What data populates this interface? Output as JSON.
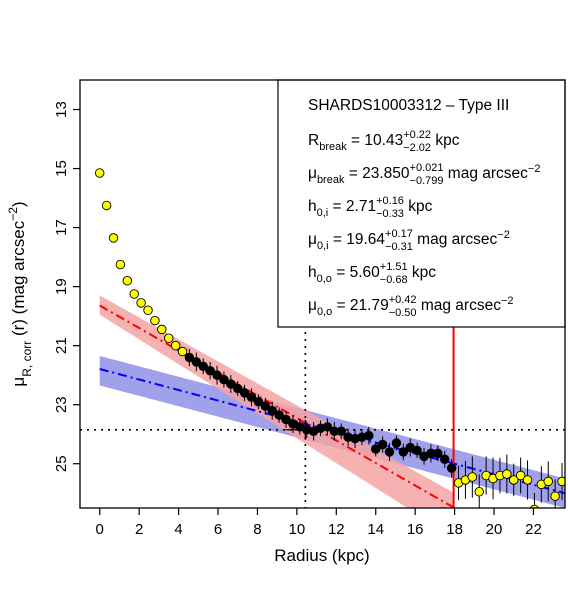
{
  "chart_data": {
    "type": "scatter",
    "title": "",
    "xlabel": "Radius (kpc)",
    "ylabel": {
      "base": "μ",
      "sub": "R, corr",
      "rest": "(r) (mag arcsec",
      "sup": "−2",
      "close": ")"
    },
    "xlim": [
      -1.0,
      23.6
    ],
    "ylim": [
      26.5,
      12.0
    ],
    "y_inverted": true,
    "x_ticks": [
      0,
      2,
      4,
      6,
      8,
      10,
      12,
      14,
      16,
      18,
      20,
      22
    ],
    "y_ticks": [
      13,
      15,
      17,
      19,
      21,
      23,
      25
    ],
    "grid": false,
    "colors": {
      "inner_fit": "#ff0000",
      "inner_band": "#f4a3a3",
      "outer_fit": "#0000ff",
      "outer_band": "#8f8fe8",
      "fit_points": "#000000",
      "excluded_points": "#ffff00",
      "limit_line": "#ff0000"
    },
    "series": [
      {
        "role": "excluded-inner",
        "marker": "yellow-circle",
        "points": [
          [
            0.0,
            15.15
          ],
          [
            0.35,
            16.25
          ],
          [
            0.7,
            17.35
          ],
          [
            1.05,
            18.25
          ],
          [
            1.4,
            18.8
          ],
          [
            1.75,
            19.25
          ],
          [
            2.1,
            19.55
          ],
          [
            2.45,
            19.8
          ],
          [
            2.8,
            20.15
          ],
          [
            3.15,
            20.45
          ],
          [
            3.5,
            20.75
          ],
          [
            3.85,
            21.0
          ],
          [
            4.2,
            21.2
          ]
        ]
      },
      {
        "role": "fitted",
        "marker": "black-circle",
        "points": [
          [
            4.55,
            21.4
          ],
          [
            4.9,
            21.55
          ],
          [
            5.25,
            21.7
          ],
          [
            5.6,
            21.85
          ],
          [
            5.95,
            22.0
          ],
          [
            6.3,
            22.15
          ],
          [
            6.65,
            22.3
          ],
          [
            7.0,
            22.45
          ],
          [
            7.35,
            22.6
          ],
          [
            7.7,
            22.75
          ],
          [
            8.05,
            22.9
          ],
          [
            8.4,
            23.05
          ],
          [
            8.75,
            23.2
          ],
          [
            9.1,
            23.35
          ],
          [
            9.45,
            23.5
          ],
          [
            9.8,
            23.65
          ],
          [
            10.15,
            23.75
          ],
          [
            10.5,
            23.85
          ],
          [
            10.85,
            23.9
          ],
          [
            11.2,
            23.8
          ],
          [
            11.55,
            23.75
          ],
          [
            11.9,
            23.9
          ],
          [
            12.25,
            23.9
          ],
          [
            12.6,
            24.1
          ],
          [
            12.95,
            24.15
          ],
          [
            13.3,
            24.1
          ],
          [
            13.65,
            24.05
          ],
          [
            14.0,
            24.5
          ],
          [
            14.35,
            24.35
          ],
          [
            14.7,
            24.6
          ],
          [
            15.05,
            24.3
          ],
          [
            15.4,
            24.6
          ],
          [
            15.75,
            24.45
          ],
          [
            16.1,
            24.55
          ],
          [
            16.45,
            24.75
          ],
          [
            16.8,
            24.65
          ],
          [
            17.15,
            24.65
          ],
          [
            17.5,
            24.85
          ],
          [
            17.85,
            25.15
          ]
        ],
        "error": 0.25
      },
      {
        "role": "excluded-outer",
        "marker": "yellow-circle",
        "points": [
          [
            18.2,
            25.65
          ],
          [
            18.55,
            25.55
          ],
          [
            18.9,
            25.45
          ],
          [
            19.25,
            25.95
          ],
          [
            19.6,
            25.4
          ],
          [
            19.95,
            25.5
          ],
          [
            20.3,
            25.4
          ],
          [
            20.65,
            25.35
          ],
          [
            21.0,
            25.55
          ],
          [
            21.35,
            25.4
          ],
          [
            21.7,
            25.55
          ],
          [
            22.05,
            26.55
          ],
          [
            22.4,
            25.7
          ],
          [
            22.75,
            25.6
          ],
          [
            23.1,
            26.1
          ],
          [
            23.45,
            25.6
          ]
        ],
        "error": 0.55
      }
    ],
    "fits": {
      "inner": {
        "x": [
          0,
          18.0
        ],
        "y": [
          19.64,
          26.5
        ],
        "band_start": [
          19.3,
          19.95
        ],
        "band_end": [
          26.0,
          27.5
        ]
      },
      "outer": {
        "x": [
          0,
          23.6
        ],
        "y": [
          21.79,
          26.0
        ],
        "band_start": [
          21.35,
          22.35
        ],
        "band_end": [
          25.5,
          26.5
        ]
      }
    },
    "reference_lines": {
      "r_break": 10.43,
      "mu_break": 23.85,
      "limit_x": 17.95
    },
    "legend": {
      "placement": "top-right",
      "title": "SHARDS10003312  –  Type III",
      "entries": [
        {
          "pre": "R",
          "sub": "break",
          "mid": " = 10.43",
          "sup": "+0.22",
          "low": "−2.02",
          "post": " kpc"
        },
        {
          "pre": "μ",
          "sub": "break",
          "mid": " = 23.850",
          "sup": "+0.021",
          "low": "−0.799",
          "post": " mag arcsec",
          "post_sup": "−2"
        },
        {
          "pre": "h",
          "sub": "0,i",
          "mid": " = 2.71",
          "sup": "+0.16",
          "low": "−0.33",
          "post": " kpc"
        },
        {
          "pre": "μ",
          "sub": "0,i",
          "mid": " = 19.64",
          "sup": "+0.17",
          "low": "−0.31",
          "post": " mag arcsec",
          "post_sup": "−2"
        },
        {
          "pre": "h",
          "sub": "0,o",
          "mid": " = 5.60",
          "sup": "+1.51",
          "low": "−0.68",
          "post": " kpc"
        },
        {
          "pre": "μ",
          "sub": "0,o",
          "mid": " = 21.79",
          "sup": "+0.42",
          "low": "−0.50",
          "post": " mag arcsec",
          "post_sup": "−2"
        }
      ]
    }
  }
}
